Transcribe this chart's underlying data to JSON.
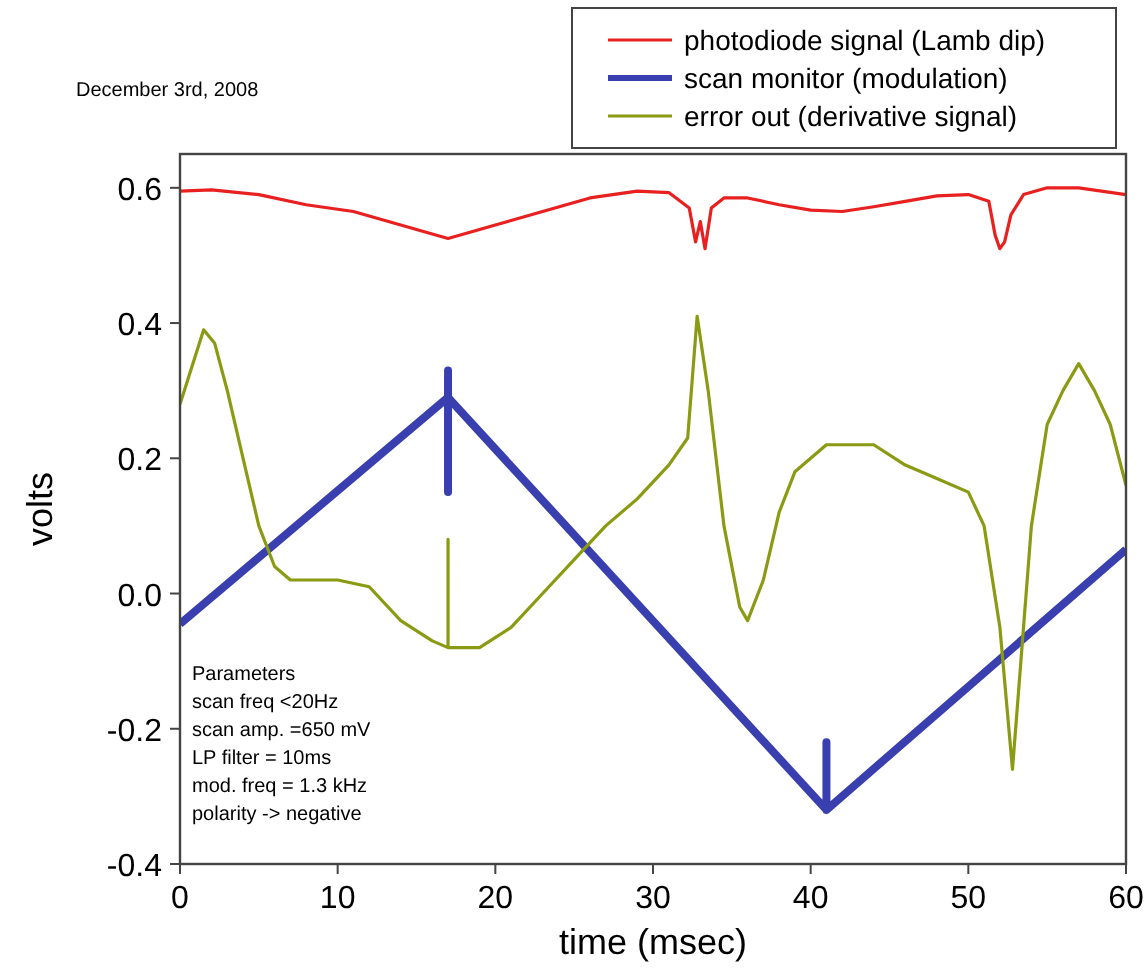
{
  "chart_data": {
    "type": "line",
    "xlabel": "time (msec)",
    "ylabel": "volts",
    "annotations": [
      "December 3rd, 2008",
      "Parameters\nscan freq <20Hz\nscan amp. =650 mV\nLP filter = 10ms\nmod. freq = 1.3 kHz\npolarity -> negative"
    ],
    "xlim": [
      0,
      60
    ],
    "ylim": [
      -0.4,
      0.65
    ],
    "xticks": [
      0,
      10,
      20,
      30,
      40,
      50,
      60
    ],
    "yticks": [
      {
        "value": 0.6,
        "label": "0.6"
      },
      {
        "value": 0.4,
        "label": "0.4"
      },
      {
        "value": 0.2,
        "label": "0.2"
      },
      {
        "value": 0,
        "label": "0.0"
      },
      {
        "value": -0.2,
        "label": "-0.2"
      },
      {
        "value": -0.4,
        "label": "-0.4"
      }
    ],
    "grid": false,
    "legend": "top right",
    "marker": "none",
    "line_style": "solid",
    "series": [
      {
        "name": "photodiode signal (Lamb dip)",
        "color": "#e82020",
        "x": [
          0,
          2,
          5,
          8,
          11,
          14,
          17,
          20,
          23,
          26,
          29,
          31,
          32.3,
          32.7,
          33,
          33.3,
          33.7,
          34.5,
          36,
          38,
          40,
          42,
          44,
          46,
          48,
          50,
          51.3,
          51.7,
          52,
          52.3,
          52.7,
          53.5,
          55,
          57,
          60
        ],
        "values": [
          0.595,
          0.597,
          0.59,
          0.575,
          0.565,
          0.545,
          0.525,
          0.545,
          0.565,
          0.585,
          0.595,
          0.593,
          0.57,
          0.52,
          0.55,
          0.51,
          0.57,
          0.585,
          0.585,
          0.575,
          0.567,
          0.565,
          0.572,
          0.58,
          0.588,
          0.59,
          0.58,
          0.53,
          0.51,
          0.52,
          0.56,
          0.59,
          0.6,
          0.6,
          0.59
        ]
      },
      {
        "name": "scan monitor (modulation)",
        "color": "#3a3fb0",
        "x": [
          0,
          17,
          17,
          17,
          17,
          41,
          41,
          41,
          60
        ],
        "values": [
          -0.045,
          0.29,
          0.33,
          0.15,
          0.29,
          -0.32,
          -0.22,
          -0.32,
          0.065
        ]
      },
      {
        "name": "error out (derivative signal)",
        "color": "#8a9a12",
        "x": [
          0,
          1.5,
          2.2,
          3,
          4,
          5,
          6,
          7,
          10,
          12,
          14,
          16,
          17,
          17,
          17,
          19,
          21,
          23,
          25,
          27,
          29,
          31,
          32.2,
          32.8,
          33.5,
          34.5,
          35.5,
          36,
          37,
          38,
          39,
          40,
          41,
          44,
          46,
          48,
          50,
          51,
          52,
          52.8,
          53.5,
          54,
          55,
          56,
          57,
          58,
          59,
          60
        ],
        "values": [
          0.28,
          0.39,
          0.37,
          0.3,
          0.2,
          0.1,
          0.04,
          0.02,
          0.02,
          0.01,
          -0.04,
          -0.07,
          -0.08,
          0.08,
          -0.08,
          -0.08,
          -0.05,
          0,
          0.05,
          0.1,
          0.14,
          0.19,
          0.23,
          0.41,
          0.3,
          0.1,
          -0.02,
          -0.04,
          0.02,
          0.12,
          0.18,
          0.2,
          0.22,
          0.22,
          0.19,
          0.17,
          0.15,
          0.1,
          -0.05,
          -0.26,
          -0.05,
          0.1,
          0.25,
          0.3,
          0.34,
          0.3,
          0.25,
          0.16
        ]
      }
    ]
  }
}
